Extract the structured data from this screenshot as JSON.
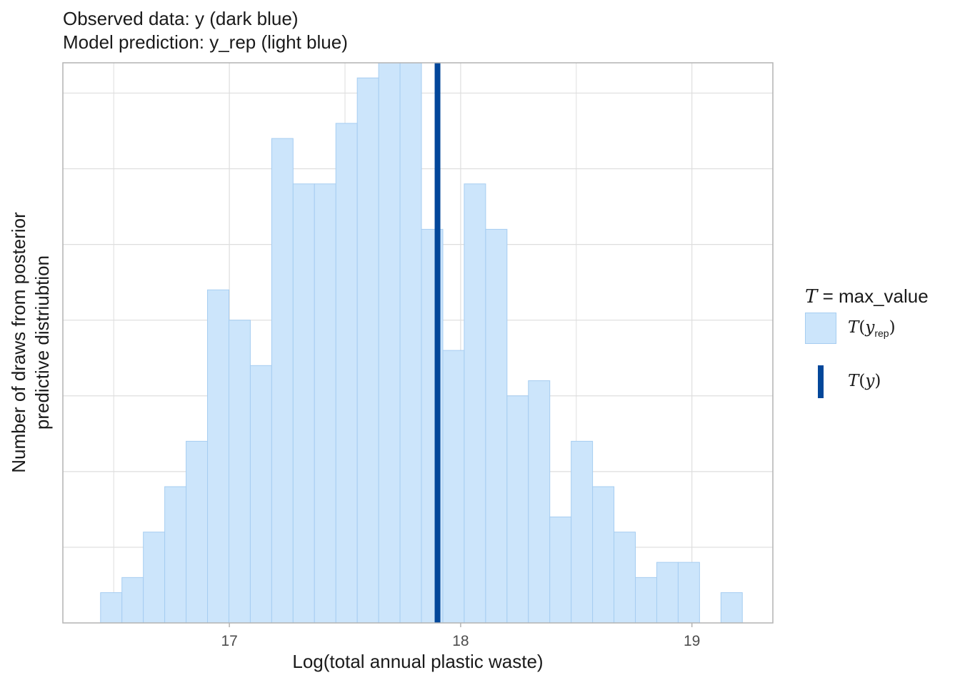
{
  "chart_data": {
    "type": "bar",
    "title": "Observed data: y (dark blue)",
    "subtitle": "Model prediction: y_rep (light blue)",
    "xlabel": "Log(total annual plastic waste)",
    "ylabel_lines": [
      "Number of draws from posterior",
      "predictive distriubtion"
    ],
    "x_ticks": [
      "17",
      "18",
      "19"
    ],
    "x_tick_values": [
      17,
      18,
      19
    ],
    "xlim": [
      16.28,
      19.35
    ],
    "ylim": [
      0,
      37
    ],
    "y_ticks_shown": false,
    "grid": true,
    "bin_width": 0.0925,
    "bin_start": 16.443,
    "counts": [
      2,
      3,
      6,
      9,
      12,
      22,
      20,
      17,
      32,
      29,
      29,
      33,
      36,
      37,
      37,
      26,
      18,
      29,
      26,
      15,
      16,
      7,
      12,
      9,
      6,
      3,
      4,
      4,
      0,
      2
    ],
    "observed_value": 17.9,
    "colors": {
      "bar_fill": "#cce5fb",
      "bar_edge": "#a6cdf1",
      "observed": "#03479a",
      "grid": "#dedede"
    },
    "legend": {
      "title_symbol": "T",
      "title_rest": " = max_value",
      "position": "right",
      "items": [
        {
          "symbol": "T",
          "arg": "y",
          "sub": "rep"
        },
        {
          "symbol": "T",
          "arg": "y",
          "sub": ""
        }
      ]
    }
  }
}
